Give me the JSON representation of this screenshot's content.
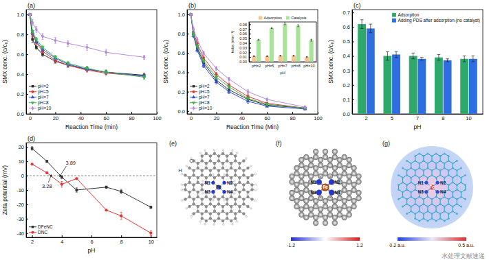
{
  "chart_data": [
    {
      "type": "line",
      "title": "(a)",
      "xlabel": "Reaction Time (min)",
      "ylabel": "SMX conc. (c/c₀)",
      "x": [
        0,
        2,
        5,
        10,
        20,
        30,
        45,
        60,
        90
      ],
      "xlim": [
        -3,
        100
      ],
      "xticks": [
        0,
        20,
        40,
        60,
        80,
        100
      ],
      "ylim": [
        0,
        1.05
      ],
      "yticks": [
        {
          "value": 0,
          "label": "0.0"
        },
        0.2,
        0.4,
        0.6,
        0.8,
        {
          "value": 1,
          "label": "1.0"
        }
      ],
      "legend": "lower left",
      "series": [
        {
          "name": "pH=2",
          "color": "#2b2b2b",
          "marker": "square",
          "values": [
            1.0,
            0.75,
            0.67,
            0.6,
            0.53,
            0.49,
            0.45,
            0.42,
            0.39
          ],
          "errors": [
            0,
            0.03,
            0.02,
            0.02,
            0.02,
            0.02,
            0.02,
            0.02,
            0.02
          ]
        },
        {
          "name": "pH=5",
          "color": "#e8322e",
          "marker": "circle",
          "values": [
            1.0,
            0.8,
            0.72,
            0.63,
            0.54,
            0.49,
            0.44,
            0.41,
            0.38
          ],
          "errors": [
            0,
            0.02,
            0.02,
            0.02,
            0.02,
            0.02,
            0.02,
            0.02,
            0.02
          ]
        },
        {
          "name": "pH=7",
          "color": "#2f4fd8",
          "marker": "triangle-up",
          "values": [
            1.0,
            0.82,
            0.73,
            0.65,
            0.56,
            0.5,
            0.45,
            0.42,
            0.38
          ],
          "errors": [
            0,
            0.02,
            0.02,
            0.02,
            0.02,
            0.02,
            0.02,
            0.02,
            0.02
          ]
        },
        {
          "name": "pH=8",
          "color": "#3bb24a",
          "marker": "triangle-down",
          "values": [
            1.0,
            0.83,
            0.75,
            0.67,
            0.57,
            0.51,
            0.46,
            0.42,
            0.37
          ],
          "errors": [
            0,
            0.02,
            0.02,
            0.02,
            0.02,
            0.02,
            0.02,
            0.02,
            0.02
          ]
        },
        {
          "name": "pH=10",
          "color": "#b58ad8",
          "marker": "diamond",
          "values": [
            1.0,
            0.92,
            0.85,
            0.78,
            0.74,
            0.71,
            0.67,
            0.62,
            0.57
          ],
          "errors": [
            0,
            0.03,
            0.03,
            0.03,
            0.03,
            0.03,
            0.03,
            0.03,
            0.02
          ]
        }
      ]
    },
    {
      "type": "line",
      "title": "(b)",
      "xlabel": "Reaction Time (Min)",
      "ylabel": "SMX conc. (c/c₀)",
      "x": [
        0,
        2,
        5,
        10,
        20,
        30,
        45,
        60,
        90
      ],
      "xlim": [
        -3,
        100
      ],
      "xticks": [
        0,
        20,
        40,
        60,
        80,
        100
      ],
      "ylim": [
        -0.03,
        1.05
      ],
      "yticks": [
        {
          "value": 0,
          "label": "0.0"
        },
        0.2,
        0.4,
        0.6,
        0.8,
        {
          "value": 1,
          "label": "1.0"
        }
      ],
      "legend": "lower left",
      "series": [
        {
          "name": "pH=2",
          "color": "#2b2b2b",
          "marker": "square",
          "values": [
            1.0,
            0.8,
            0.65,
            0.5,
            0.32,
            0.22,
            0.12,
            0.06,
            0.03
          ],
          "errors": [
            0,
            0.02,
            0.02,
            0.02,
            0.02,
            0.02,
            0.02,
            0.01,
            0.01
          ]
        },
        {
          "name": "pH=5",
          "color": "#e8322e",
          "marker": "circle",
          "values": [
            1.0,
            0.82,
            0.7,
            0.55,
            0.38,
            0.27,
            0.15,
            0.08,
            0.03
          ],
          "errors": [
            0,
            0.02,
            0.02,
            0.02,
            0.02,
            0.02,
            0.02,
            0.01,
            0.01
          ]
        },
        {
          "name": "pH=7",
          "color": "#2f4fd8",
          "marker": "triangle-up",
          "values": [
            1.0,
            0.78,
            0.63,
            0.47,
            0.3,
            0.2,
            0.1,
            0.05,
            0.02
          ],
          "errors": [
            0,
            0.02,
            0.02,
            0.02,
            0.02,
            0.02,
            0.02,
            0.01,
            0.01
          ]
        },
        {
          "name": "pH=8",
          "color": "#3bb24a",
          "marker": "triangle-down",
          "values": [
            1.0,
            0.8,
            0.67,
            0.52,
            0.35,
            0.25,
            0.13,
            0.07,
            0.03
          ],
          "errors": [
            0,
            0.02,
            0.02,
            0.02,
            0.02,
            0.02,
            0.02,
            0.01,
            0.01
          ]
        },
        {
          "name": "pH=10",
          "color": "#b58ad8",
          "marker": "diamond",
          "values": [
            1.0,
            0.85,
            0.74,
            0.6,
            0.44,
            0.33,
            0.2,
            0.12,
            0.04
          ],
          "errors": [
            0,
            0.02,
            0.02,
            0.02,
            0.02,
            0.02,
            0.02,
            0.01,
            0.01
          ]
        }
      ]
    },
    {
      "type": "bar",
      "xlabel": "pH",
      "ylabel": "kobs (min⁻¹)",
      "categories": [
        "pH=2",
        "pH=5",
        "pH=7",
        "pH=8",
        "pH=10"
      ],
      "ylim": [
        0,
        0.085
      ],
      "yticks": [
        {
          "value": 0,
          "label": "0.00"
        },
        {
          "value": 0.01,
          "label": "0.01"
        },
        {
          "value": 0.02,
          "label": "0.02"
        },
        {
          "value": 0.03,
          "label": "0.03"
        },
        {
          "value": 0.04,
          "label": "0.04"
        },
        {
          "value": 0.05,
          "label": "0.05"
        },
        {
          "value": 0.06,
          "label": "0.06"
        },
        {
          "value": 0.07,
          "label": "0.07"
        },
        {
          "value": 0.08,
          "label": "0.08"
        }
      ],
      "legend": "top",
      "series": [
        {
          "name": "Adsorption",
          "color": "#f7c38e",
          "values": [
            0.012,
            0.012,
            0.013,
            0.013,
            0.01
          ],
          "errors": [
            0.001,
            0.001,
            0.001,
            0.001,
            0.001
          ]
        },
        {
          "name": "Catalysis",
          "color": "#a9e39a",
          "values": [
            0.047,
            0.072,
            0.081,
            0.077,
            0.046
          ],
          "errors": [
            0.001,
            0.001,
            0.002,
            0.002,
            0.002
          ]
        }
      ]
    },
    {
      "type": "bar",
      "title": "(c)",
      "xlabel": "pH",
      "ylabel": "SMX conc. (c/c₀)",
      "categories": [
        "2",
        "5",
        "7",
        "8",
        "10"
      ],
      "ylim": [
        0,
        0.72
      ],
      "yticks": [
        {
          "value": 0,
          "label": "0.0"
        },
        0.1,
        0.2,
        0.3,
        0.4,
        0.5,
        0.6,
        0.7
      ],
      "legend": "upper right",
      "series": [
        {
          "name": "Adsorption",
          "color": "#2ea86b",
          "values": [
            0.62,
            0.4,
            0.4,
            0.39,
            0.38
          ],
          "errors": [
            0.03,
            0.03,
            0.02,
            0.02,
            0.02
          ]
        },
        {
          "name": "Adding PDS after adsorption (no catalyst)",
          "color": "#2e6ee0",
          "values": [
            0.59,
            0.41,
            0.38,
            0.37,
            0.38
          ],
          "errors": [
            0.03,
            0.02,
            0.01,
            0.01,
            0.02
          ]
        }
      ]
    },
    {
      "type": "line",
      "title": "(d)",
      "xlabel": "pH",
      "ylabel": "Zeta potential (mV)",
      "x": [
        2,
        3,
        4,
        5,
        7,
        8,
        10
      ],
      "xlim": [
        1.6,
        10.4
      ],
      "xticks": [
        2,
        4,
        6,
        8,
        10
      ],
      "ylim": [
        -43,
        23
      ],
      "yticks": [
        -40,
        -30,
        -20,
        -10,
        0,
        10,
        20
      ],
      "legend": "lower left",
      "annotations": [
        {
          "text": "3.89",
          "x": 3.89,
          "y": 0
        },
        {
          "text": "3.28",
          "x": 3.28,
          "y": 0
        }
      ],
      "series": [
        {
          "name": "DFeNC",
          "color": "#333333",
          "marker": "square",
          "values": [
            19,
            10,
            -1,
            -10,
            -8,
            -11,
            -22
          ],
          "errors": [
            1.2,
            0.8,
            1.0,
            1.5,
            0.8,
            1.5,
            0.8
          ]
        },
        {
          "name": "DNC",
          "color": "#e8322e",
          "marker": "circle",
          "values": [
            8,
            2,
            -6,
            -2,
            -24,
            -28,
            -40
          ],
          "errors": [
            0.5,
            0.5,
            2.0,
            0.5,
            0.5,
            2.5,
            1.5
          ]
        }
      ]
    }
  ],
  "panels": [
    {
      "label": "(e)",
      "atom_labels": [
        "C",
        "H"
      ],
      "metal": "Fe",
      "nitrogens": [
        "N1",
        "N2",
        "N3",
        "N4"
      ]
    },
    {
      "label": "(f)",
      "metal": "Fe",
      "nitrogens": [
        "N1",
        "N2",
        "N3",
        "N4"
      ],
      "colorbar": {
        "range": [
          -1.2,
          1.2
        ],
        "ticks": [
          -1.2,
          1.2
        ]
      }
    },
    {
      "label": "(g)",
      "metal": "Fe",
      "nitrogens": [
        "N1",
        "N2",
        "N3",
        "N4"
      ],
      "colorbar": {
        "range": [
          0.2,
          0.5
        ],
        "ticks": [
          {
            "value": 0.2,
            "label": "0.2 a.u."
          },
          {
            "value": 0.5,
            "label": "0.5 a.u."
          }
        ]
      }
    }
  ],
  "watermark": "水处理文献速递"
}
